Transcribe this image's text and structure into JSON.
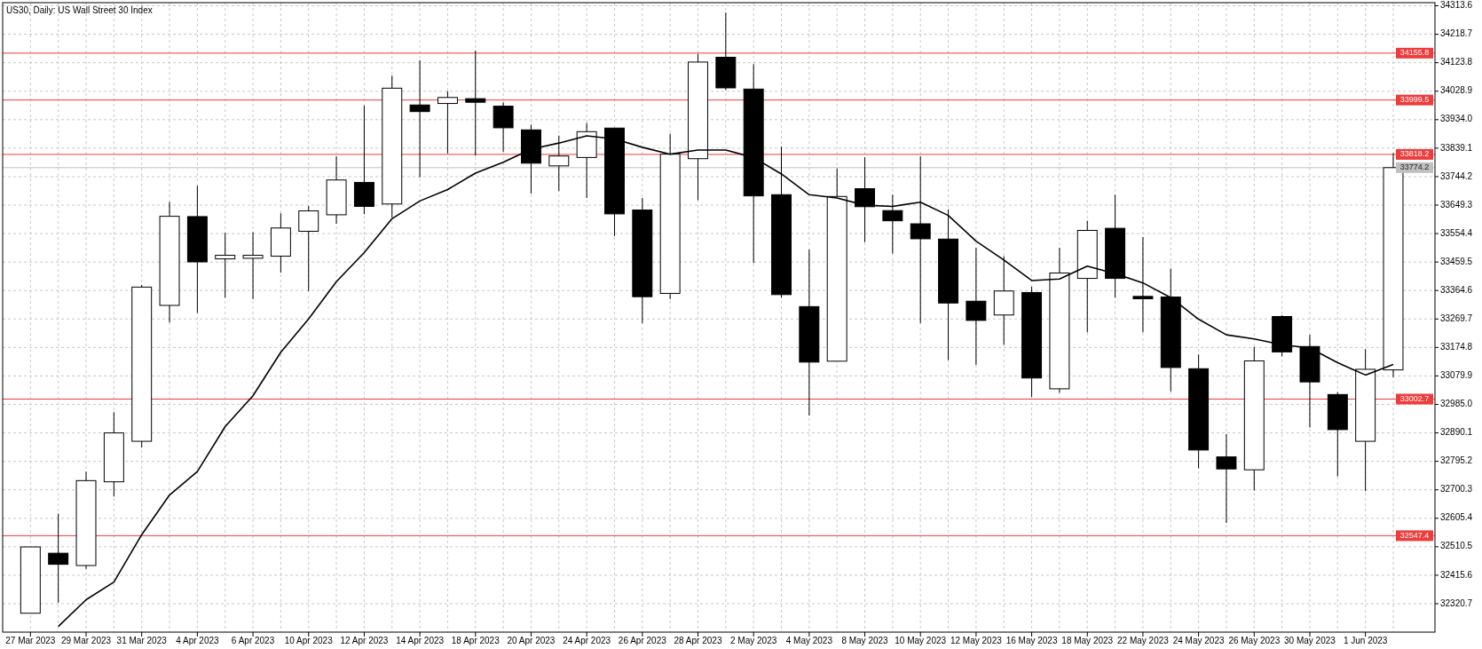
{
  "chart_data": {
    "type": "candlestick",
    "title": "US30, Daily:  US Wall Street 30 Index",
    "categories": [
      "27 Mar 2023",
      null,
      "29 Mar 2023",
      null,
      "31 Mar 2023",
      null,
      "4 Apr 2023",
      null,
      "6 Apr 2023",
      null,
      "10 Apr 2023",
      null,
      "12 Apr 2023",
      null,
      "14 Apr 2023",
      null,
      "18 Apr 2023",
      null,
      "20 Apr 2023",
      null,
      "24 Apr 2023",
      null,
      "26 Apr 2023",
      null,
      "28 Apr 2023",
      null,
      "2 May 2023",
      null,
      "4 May 2023",
      null,
      "8 May 2023",
      null,
      "10 May 2023",
      null,
      "12 May 2023",
      null,
      "16 May 2023",
      null,
      "18 May 2023",
      null,
      "22 May 2023",
      null,
      "24 May 2023",
      null,
      "26 May 2023",
      null,
      "30 May 2023",
      null,
      "1 Jun 2023",
      null
    ],
    "ohlc": [
      [
        32289,
        32510,
        32289,
        32510
      ],
      [
        32489,
        32621,
        32324,
        32452
      ],
      [
        32448,
        32761,
        32437,
        32731
      ],
      [
        32727,
        32959,
        32678,
        32890
      ],
      [
        32862,
        33383,
        32841,
        33376
      ],
      [
        33315,
        33660,
        33258,
        33612
      ],
      [
        33611,
        33714,
        33290,
        33460
      ],
      [
        33470,
        33557,
        33341,
        33482
      ],
      [
        33472,
        33559,
        33336,
        33482
      ],
      [
        33479,
        33622,
        33424,
        33573
      ],
      [
        33562,
        33646,
        33363,
        33630
      ],
      [
        33617,
        33812,
        33587,
        33733
      ],
      [
        33725,
        33981,
        33619,
        33645
      ],
      [
        33653,
        34081,
        33608,
        34039
      ],
      [
        33983,
        34132,
        33742,
        33961
      ],
      [
        33988,
        34029,
        33822,
        34008
      ],
      [
        34004,
        34164,
        33814,
        33992
      ],
      [
        33979,
        33992,
        33827,
        33907
      ],
      [
        33900,
        33918,
        33688,
        33789
      ],
      [
        33780,
        33881,
        33696,
        33813
      ],
      [
        33808,
        33923,
        33673,
        33894
      ],
      [
        33906,
        33906,
        33546,
        33620
      ],
      [
        33633,
        33673,
        33256,
        33344
      ],
      [
        33355,
        33887,
        33336,
        33819
      ],
      [
        33804,
        34153,
        33666,
        34126
      ],
      [
        34142,
        34291,
        34033,
        34040
      ],
      [
        34036,
        34119,
        33456,
        33680
      ],
      [
        33684,
        33844,
        33341,
        33351
      ],
      [
        33311,
        33501,
        32948,
        33126
      ],
      [
        33129,
        33771,
        33129,
        33678
      ],
      [
        33704,
        33809,
        33526,
        33644
      ],
      [
        33631,
        33684,
        33488,
        33597
      ],
      [
        33587,
        33812,
        33256,
        33537
      ],
      [
        33536,
        33635,
        33133,
        33323
      ],
      [
        33329,
        33507,
        33117,
        33265
      ],
      [
        33283,
        33479,
        33184,
        33363
      ],
      [
        33358,
        33377,
        33010,
        33073
      ],
      [
        33037,
        33507,
        33024,
        33423
      ],
      [
        33405,
        33597,
        33225,
        33565
      ],
      [
        33572,
        33684,
        33341,
        33405
      ],
      [
        33345,
        33543,
        33225,
        33337
      ],
      [
        33343,
        33438,
        33028,
        33108
      ],
      [
        33104,
        33151,
        32772,
        32833
      ],
      [
        32810,
        32886,
        32590,
        32770
      ],
      [
        32767,
        33177,
        32698,
        33130
      ],
      [
        33278,
        33282,
        33145,
        33160
      ],
      [
        33178,
        33217,
        32908,
        33060
      ],
      [
        33018,
        33026,
        32745,
        32901
      ],
      [
        32862,
        33169,
        32696,
        33102
      ],
      [
        33100,
        33822,
        33076,
        33774.2
      ]
    ],
    "series": [
      {
        "type": "line",
        "color": "#000000",
        "values": [
          null,
          32245,
          32334,
          32393,
          32551,
          32683,
          32761,
          32911,
          33014,
          33159,
          33270,
          33394,
          33491,
          33604,
          33663,
          33701,
          33756,
          33792,
          33836,
          33856,
          33880,
          33870,
          33842,
          33819,
          33833,
          33833,
          33808,
          33753,
          33684,
          33673,
          33649,
          33645,
          33659,
          33615,
          33529,
          33466,
          33398,
          33403,
          33446,
          33421,
          33390,
          33341,
          33269,
          33217,
          33203,
          33184,
          33173,
          33124,
          33083,
          33118
        ]
      }
    ],
    "ylim": [
      32226,
      34324
    ],
    "yticks": [
      34313.6,
      34218.7,
      34123.8,
      34028.9,
      {
        "value": 33934,
        "label": "33934.0"
      },
      33839.1,
      33744.2,
      33649.3,
      33554.4,
      33459.5,
      33364.6,
      33269.7,
      33174.8,
      33079.9,
      {
        "value": 32985,
        "label": "32985.0"
      },
      32890.1,
      32795.2,
      32700.3,
      32605.4,
      32510.5,
      32415.6,
      32320.7
    ],
    "ref_lines": [
      {
        "axis": "y",
        "value": 34155.8,
        "label": "34155.8",
        "color": "#ef3b3b"
      },
      {
        "axis": "y",
        "value": 33999.5,
        "label": "33999.5",
        "color": "#ef3b3b"
      },
      {
        "axis": "y",
        "value": 33818.2,
        "label": "33818.2",
        "color": "#ef3b3b"
      },
      {
        "axis": "y",
        "value": 33774.2,
        "label": "33774.2",
        "color": "#c0c0c0"
      },
      {
        "axis": "y",
        "value": 33002.7,
        "label": "33002.7",
        "color": "#ef3b3b"
      },
      {
        "axis": "y",
        "value": 32547.4,
        "label": "32547.4",
        "color": "#ef3b3b"
      }
    ],
    "grid": true
  }
}
